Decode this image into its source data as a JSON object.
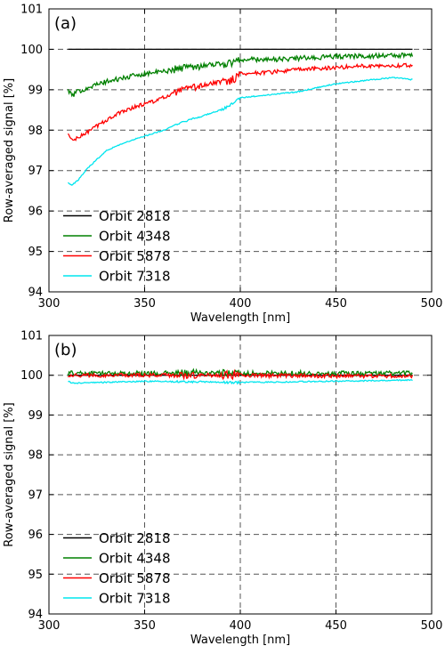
{
  "chart_data": [
    {
      "type": "line",
      "panel_label": "(a)",
      "xlabel": "Wavelength [nm]",
      "ylabel": "Row-averaged signal [%]",
      "xlim": [
        300,
        500
      ],
      "ylim": [
        94,
        101
      ],
      "xticks": [
        "300",
        "350",
        "400",
        "450",
        "500"
      ],
      "yticks": [
        "94",
        "95",
        "96",
        "97",
        "98",
        "99",
        "100",
        "101"
      ],
      "grid": "dashed",
      "legend_position": "bottom-left",
      "series": [
        {
          "name": "Orbit 2818",
          "color": "#000000",
          "noise": 0.0,
          "x": [
            310,
            490
          ],
          "y": [
            100.0,
            100.0
          ]
        },
        {
          "name": "Orbit 4348",
          "color": "#008000",
          "noise": 0.06,
          "x": [
            310,
            312,
            315,
            320,
            330,
            340,
            350,
            360,
            370,
            380,
            390,
            396,
            400,
            410,
            420,
            430,
            440,
            450,
            460,
            470,
            480,
            490
          ],
          "y": [
            99.0,
            98.85,
            98.95,
            99.05,
            99.2,
            99.3,
            99.4,
            99.45,
            99.55,
            99.6,
            99.65,
            99.65,
            99.75,
            99.75,
            99.75,
            99.78,
            99.8,
            99.82,
            99.83,
            99.84,
            99.85,
            99.85
          ]
        },
        {
          "name": "Orbit 5878",
          "color": "#ff0000",
          "noise": 0.05,
          "x": [
            310,
            312,
            315,
            320,
            330,
            340,
            350,
            360,
            370,
            380,
            390,
            396,
            400,
            410,
            420,
            430,
            440,
            450,
            460,
            470,
            480,
            490
          ],
          "y": [
            97.9,
            97.75,
            97.8,
            97.95,
            98.25,
            98.5,
            98.65,
            98.8,
            99.0,
            99.1,
            99.2,
            99.25,
            99.4,
            99.42,
            99.45,
            99.5,
            99.52,
            99.55,
            99.58,
            99.6,
            99.6,
            99.6
          ]
        },
        {
          "name": "Orbit 7318",
          "color": "#00e5ee",
          "noise": 0.015,
          "x": [
            310,
            312,
            315,
            320,
            330,
            340,
            350,
            360,
            370,
            380,
            390,
            396,
            400,
            410,
            420,
            430,
            440,
            450,
            460,
            470,
            480,
            490
          ],
          "y": [
            96.7,
            96.65,
            96.75,
            97.05,
            97.5,
            97.7,
            97.85,
            98.0,
            98.2,
            98.35,
            98.5,
            98.65,
            98.8,
            98.85,
            98.9,
            98.95,
            99.05,
            99.15,
            99.2,
            99.25,
            99.3,
            99.25
          ]
        }
      ]
    },
    {
      "type": "line",
      "panel_label": "(b)",
      "xlabel": "Wavelength [nm]",
      "ylabel": "Row-averaged signal [%]",
      "xlim": [
        300,
        500
      ],
      "ylim": [
        94,
        101
      ],
      "xticks": [
        "300",
        "350",
        "400",
        "450",
        "500"
      ],
      "yticks": [
        "94",
        "95",
        "96",
        "97",
        "98",
        "99",
        "100",
        "101"
      ],
      "grid": "dashed",
      "legend_position": "bottom-left",
      "series": [
        {
          "name": "Orbit 2818",
          "color": "#000000",
          "noise": 0.0,
          "x": [
            310,
            490
          ],
          "y": [
            100.0,
            100.0
          ]
        },
        {
          "name": "Orbit 4348",
          "color": "#008000",
          "noise": 0.06,
          "x": [
            310,
            350,
            400,
            450,
            490
          ],
          "y": [
            100.05,
            100.05,
            100.05,
            100.05,
            100.05
          ]
        },
        {
          "name": "Orbit 5878",
          "color": "#ff0000",
          "noise": 0.05,
          "x": [
            310,
            350,
            400,
            450,
            490
          ],
          "y": [
            100.0,
            100.0,
            100.0,
            99.98,
            99.98
          ]
        },
        {
          "name": "Orbit 7318",
          "color": "#00e5ee",
          "noise": 0.015,
          "x": [
            310,
            312,
            350,
            400,
            450,
            490
          ],
          "y": [
            99.85,
            99.8,
            99.85,
            99.82,
            99.85,
            99.88
          ]
        }
      ]
    }
  ]
}
